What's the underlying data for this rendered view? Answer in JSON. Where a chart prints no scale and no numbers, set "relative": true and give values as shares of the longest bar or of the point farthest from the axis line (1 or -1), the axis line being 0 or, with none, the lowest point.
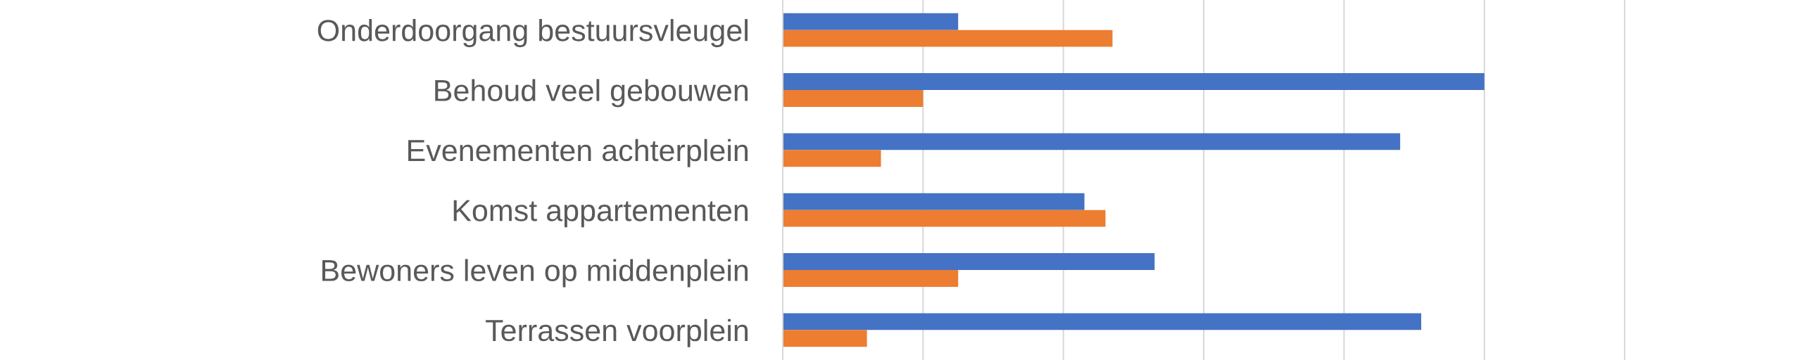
{
  "chart_data": {
    "type": "bar",
    "orientation": "horizontal",
    "relative": true,
    "categories": [
      "Onderdoorgang bestuursvleugel",
      "Behoud veel gebouwen",
      "Evenementen achterplein",
      "Komst appartementen",
      "Bewoners leven op middenplein",
      "Terrassen voorplein"
    ],
    "series": [
      {
        "color": "#4472c4",
        "values": [
          0.25,
          1,
          0.88,
          0.43,
          0.53,
          0.91
        ]
      },
      {
        "color": "#ed7d31",
        "values": [
          0.47,
          0.2,
          0.14,
          0.46,
          0.25,
          0.12
        ]
      }
    ],
    "grid": "x"
  }
}
